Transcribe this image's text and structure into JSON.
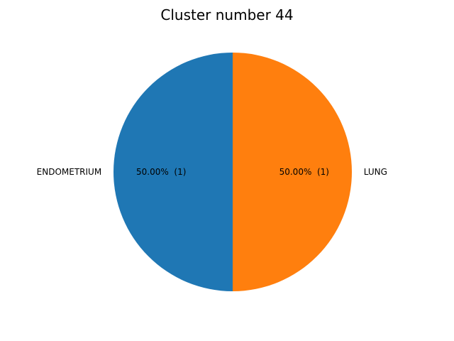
{
  "chart_data": {
    "type": "pie",
    "title": "Cluster number 44",
    "slices": [
      {
        "label": "ENDOMETRIUM",
        "value": 1,
        "percent_label": "50.00%  (1)",
        "color": "#1f77b4"
      },
      {
        "label": "LUNG",
        "value": 1,
        "percent_label": "50.00%  (1)",
        "color": "#ff7f0e"
      }
    ],
    "start_angle_deg": 90,
    "direction": "counterclockwise",
    "legend": "none"
  }
}
